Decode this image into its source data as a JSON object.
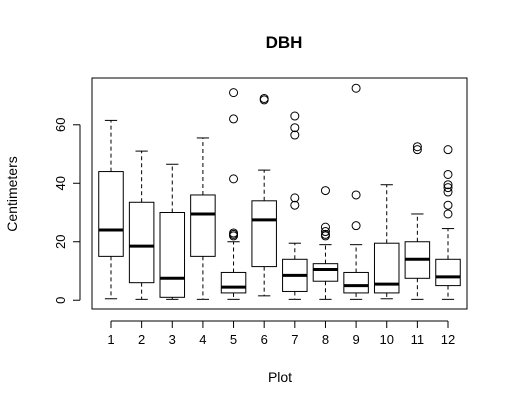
{
  "chart_data": {
    "type": "boxplot",
    "title": "DBH",
    "xlabel": "Plot",
    "ylabel": "Centimeters",
    "categories": [
      "1",
      "2",
      "3",
      "4",
      "5",
      "6",
      "7",
      "8",
      "9",
      "10",
      "11",
      "12"
    ],
    "yticks": [
      0,
      20,
      40,
      60
    ],
    "ytick_labels": [
      "0",
      "20",
      "40",
      "60"
    ],
    "ylim": [
      -3,
      76
    ],
    "boxes": [
      {
        "min": 0.5,
        "q1": 15,
        "median": 24,
        "q3": 44,
        "max": 61.5,
        "outliers": []
      },
      {
        "min": 0.3,
        "q1": 6,
        "median": 18.5,
        "q3": 33.5,
        "max": 51,
        "outliers": []
      },
      {
        "min": 0.3,
        "q1": 1,
        "median": 7.5,
        "q3": 30,
        "max": 46.5,
        "outliers": []
      },
      {
        "min": 0.3,
        "q1": 15,
        "median": 29.5,
        "q3": 36,
        "max": 55.5,
        "outliers": []
      },
      {
        "min": 0.3,
        "q1": 2.5,
        "median": 4.5,
        "q3": 9.5,
        "max": 20,
        "outliers": [
          22,
          22.5,
          23,
          41.5,
          62,
          71
        ]
      },
      {
        "min": 1.5,
        "q1": 11.5,
        "median": 27.5,
        "q3": 34,
        "max": 44.5,
        "outliers": [
          68.5,
          69
        ]
      },
      {
        "min": 0.3,
        "q1": 3,
        "median": 8.5,
        "q3": 14,
        "max": 19.5,
        "outliers": [
          32.5,
          35,
          56.5,
          59,
          63
        ]
      },
      {
        "min": 0.3,
        "q1": 6.5,
        "median": 10.5,
        "q3": 12.5,
        "max": 19,
        "outliers": [
          22,
          22.5,
          23.5,
          25,
          37.5
        ]
      },
      {
        "min": 0.3,
        "q1": 2.5,
        "median": 5,
        "q3": 9.5,
        "max": 19,
        "outliers": [
          25.5,
          36,
          72.5
        ]
      },
      {
        "min": 0.5,
        "q1": 2.5,
        "median": 5.5,
        "q3": 19.5,
        "max": 39.5,
        "outliers": []
      },
      {
        "min": 0.3,
        "q1": 7.5,
        "median": 14,
        "q3": 20,
        "max": 29.5,
        "outliers": [
          51.5,
          52.5
        ]
      },
      {
        "min": 0.3,
        "q1": 5,
        "median": 8,
        "q3": 14,
        "max": 24.5,
        "outliers": [
          29.5,
          32.5,
          37,
          38.5,
          39.5,
          43,
          51.5
        ]
      }
    ]
  }
}
